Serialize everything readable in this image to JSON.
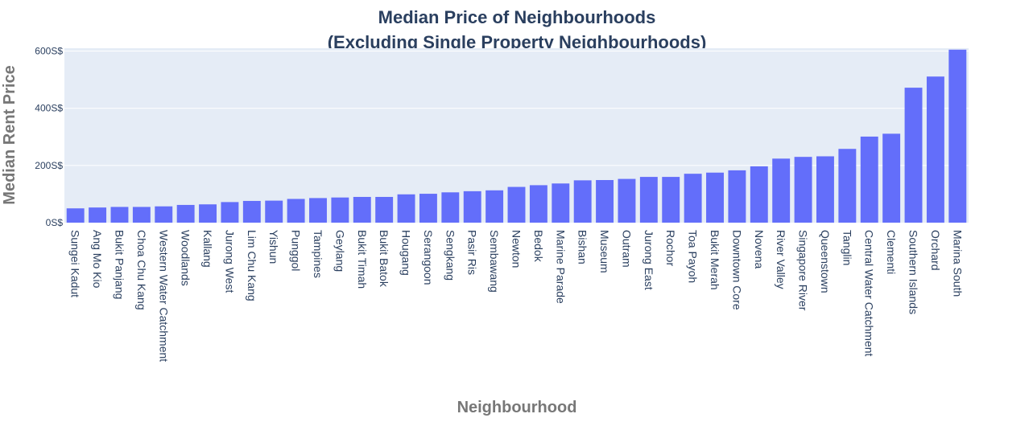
{
  "chart_data": {
    "type": "bar",
    "title_lines": [
      "Median Price of Neighbourhoods",
      "(Excluding Single Property Neighbourhoods)"
    ],
    "xlabel": "Neighbourhood",
    "ylabel": "Median Rent Price",
    "ylim": [
      0,
      610
    ],
    "yticks": [
      0,
      200,
      400,
      600
    ],
    "ytick_labels": [
      "0S$",
      "200S$",
      "400S$",
      "600S$"
    ],
    "grid": true,
    "categories": [
      "Sungei Kadut",
      "Ang Mo Kio",
      "Bukit Panjang",
      "Choa Chu Kang",
      "Western Water Catchment",
      "Woodlands",
      "Kallang",
      "Jurong West",
      "Lim Chu Kang",
      "Yishun",
      "Punggol",
      "Tampines",
      "Geylang",
      "Bukit Timah",
      "Bukit Batok",
      "Hougang",
      "Serangoon",
      "Sengkang",
      "Pasir Ris",
      "Sembawang",
      "Newton",
      "Bedok",
      "Marine Parade",
      "Bishan",
      "Museum",
      "Outram",
      "Jurong East",
      "Rochor",
      "Toa Payoh",
      "Bukit Merah",
      "Downtown Core",
      "Novena",
      "River Valley",
      "Singapore River",
      "Queenstown",
      "Tanglin",
      "Central Water Catchment",
      "Clementi",
      "Southern Islands",
      "Orchard",
      "Marina South"
    ],
    "values": [
      50,
      53,
      55,
      55,
      57,
      62,
      64,
      72,
      76,
      77,
      83,
      86,
      88,
      90,
      90,
      99,
      101,
      106,
      110,
      113,
      125,
      131,
      137,
      148,
      149,
      153,
      160,
      160,
      171,
      175,
      183,
      197,
      224,
      230,
      232,
      258,
      301,
      311,
      472,
      511,
      605
    ]
  },
  "colors": {
    "bar": "#636efa",
    "plot_background": "#e5ecf6",
    "gridline": "#ffffff",
    "title": "#2a3f5f",
    "axis_title": "#777777",
    "tick_label": "#2a3f5f"
  }
}
